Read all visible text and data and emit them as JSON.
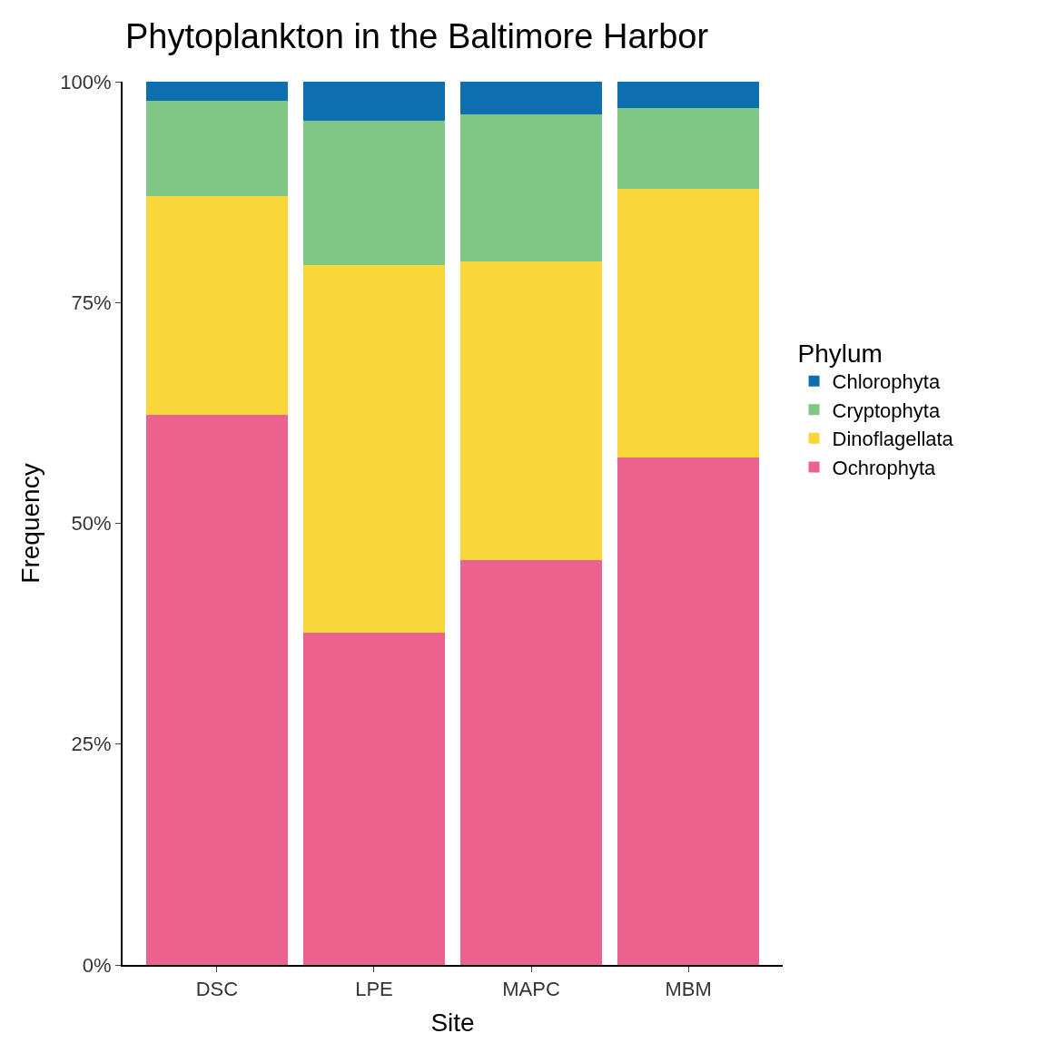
{
  "chart_data": {
    "type": "bar",
    "title": "Phytoplankton in the Baltimore Harbor",
    "xlabel": "Site",
    "ylabel": "Frequency",
    "legend_title": "Phylum",
    "categories": [
      "DSC",
      "LPE",
      "MAPC",
      "MBM"
    ],
    "stacked": true,
    "series": [
      {
        "name": "Ochrophyta",
        "color": "#ec628f",
        "values": [
          62.3,
          37.6,
          45.8,
          57.5
        ]
      },
      {
        "name": "Dinoflagellata",
        "color": "#f9d63a",
        "values": [
          24.8,
          41.6,
          33.9,
          30.4
        ]
      },
      {
        "name": "Cryptophyta",
        "color": "#80c684",
        "values": [
          10.7,
          16.4,
          16.6,
          9.1
        ]
      },
      {
        "name": "Chlorophyta",
        "color": "#0d6fb0",
        "values": [
          2.2,
          4.4,
          3.7,
          3.0
        ]
      }
    ],
    "ylim": [
      0,
      100
    ],
    "yticks": [
      {
        "value": 0,
        "label": "0%"
      },
      {
        "value": 25,
        "label": "25%"
      },
      {
        "value": 50,
        "label": "50%"
      },
      {
        "value": 75,
        "label": "75%"
      },
      {
        "value": 100,
        "label": "100%"
      }
    ],
    "legend": "right"
  }
}
